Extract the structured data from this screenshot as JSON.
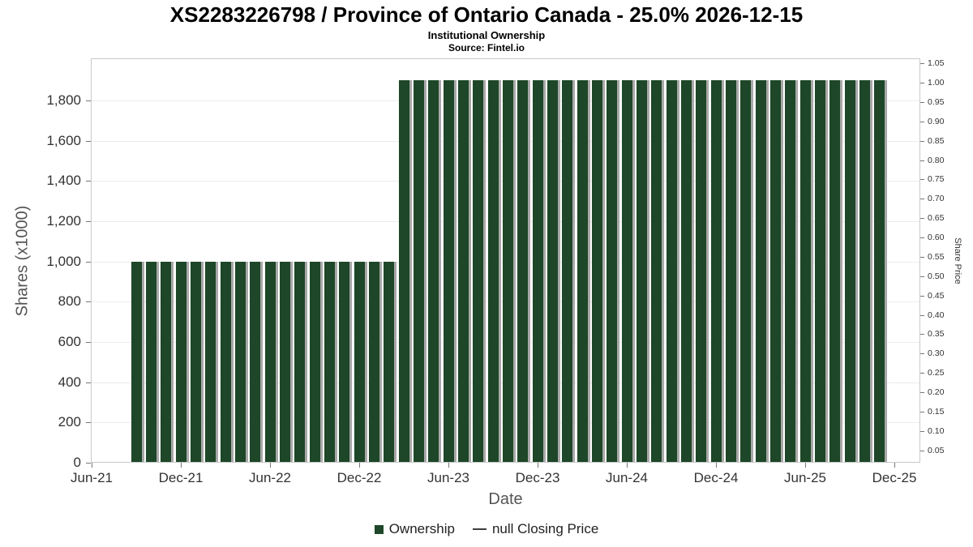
{
  "chart_data": {
    "type": "bar",
    "title": "XS2283226798 / Province of Ontario Canada - 25.0% 2026-12-15",
    "subtitle": "Institutional Ownership",
    "source": "Source: Fintel.io",
    "xlabel": "Date",
    "ylabel": "Shares (x1000)",
    "ylabel_right": "Share Price",
    "bar_color": "#1d4728",
    "bar_shadow_color": "#a8a8a8",
    "grid": true,
    "legend_position": "bottom",
    "x_tick_labels": [
      "Jun-21",
      "Dec-21",
      "Jun-22",
      "Dec-22",
      "Jun-23",
      "Dec-23",
      "Jun-24",
      "Dec-24",
      "Jun-25",
      "Dec-25"
    ],
    "left_axis": {
      "max": 2009,
      "ticks": [
        {
          "label": "0",
          "value": 0
        },
        {
          "label": "200",
          "value": 200
        },
        {
          "label": "400",
          "value": 400
        },
        {
          "label": "600",
          "value": 600
        },
        {
          "label": "800",
          "value": 800
        },
        {
          "label": "1,000",
          "value": 1000
        },
        {
          "label": "1,200",
          "value": 1200
        },
        {
          "label": "1,400",
          "value": 1400
        },
        {
          "label": "1,600",
          "value": 1600
        },
        {
          "label": "1,800",
          "value": 1800
        }
      ]
    },
    "right_axis": {
      "min": 0.018,
      "max": 1.063,
      "ticks": [
        {
          "label": "1.05",
          "value": 1.05
        },
        {
          "label": "1.00",
          "value": 1.0
        },
        {
          "label": "0.95",
          "value": 0.95
        },
        {
          "label": "0.90",
          "value": 0.9
        },
        {
          "label": "0.85",
          "value": 0.85
        },
        {
          "label": "0.80",
          "value": 0.8
        },
        {
          "label": "0.75",
          "value": 0.75
        },
        {
          "label": "0.70",
          "value": 0.7
        },
        {
          "label": "0.65",
          "value": 0.65
        },
        {
          "label": "0.60",
          "value": 0.6
        },
        {
          "label": "0.55",
          "value": 0.55
        },
        {
          "label": "0.50",
          "value": 0.5
        },
        {
          "label": "0.45",
          "value": 0.45
        },
        {
          "label": "0.40",
          "value": 0.4
        },
        {
          "label": "0.35",
          "value": 0.35
        },
        {
          "label": "0.30",
          "value": 0.3
        },
        {
          "label": "0.25",
          "value": 0.25
        },
        {
          "label": "0.20",
          "value": 0.2
        },
        {
          "label": "0.15",
          "value": 0.15
        },
        {
          "label": "0.10",
          "value": 0.1
        },
        {
          "label": "0.05",
          "value": 0.05
        }
      ]
    },
    "legend": [
      {
        "label": "Ownership",
        "marker": "square",
        "color": "#1d4728"
      },
      {
        "label": "null Closing Price",
        "marker": "line",
        "color": "#3f3f3f"
      }
    ],
    "series": [
      {
        "name": "Ownership",
        "unit": "shares x1000",
        "points": [
          {
            "month": "Sep-21",
            "value": 1000
          },
          {
            "month": "Oct-21",
            "value": 1000
          },
          {
            "month": "Nov-21",
            "value": 1000
          },
          {
            "month": "Dec-21",
            "value": 1000
          },
          {
            "month": "Jan-22",
            "value": 1000
          },
          {
            "month": "Feb-22",
            "value": 1000
          },
          {
            "month": "Mar-22",
            "value": 1000
          },
          {
            "month": "Apr-22",
            "value": 1000
          },
          {
            "month": "May-22",
            "value": 1000
          },
          {
            "month": "Jun-22",
            "value": 1000
          },
          {
            "month": "Jul-22",
            "value": 1000
          },
          {
            "month": "Aug-22",
            "value": 1000
          },
          {
            "month": "Sep-22",
            "value": 1000
          },
          {
            "month": "Oct-22",
            "value": 1000
          },
          {
            "month": "Nov-22",
            "value": 1000
          },
          {
            "month": "Dec-22",
            "value": 1000
          },
          {
            "month": "Jan-23",
            "value": 1000
          },
          {
            "month": "Feb-23",
            "value": 1000
          },
          {
            "month": "Mar-23",
            "value": 1900
          },
          {
            "month": "Apr-23",
            "value": 1900
          },
          {
            "month": "May-23",
            "value": 1900
          },
          {
            "month": "Jun-23",
            "value": 1900
          },
          {
            "month": "Jul-23",
            "value": 1900
          },
          {
            "month": "Aug-23",
            "value": 1900
          },
          {
            "month": "Sep-23",
            "value": 1900
          },
          {
            "month": "Oct-23",
            "value": 1900
          },
          {
            "month": "Nov-23",
            "value": 1900
          },
          {
            "month": "Dec-23",
            "value": 1900
          },
          {
            "month": "Jan-24",
            "value": 1900
          },
          {
            "month": "Feb-24",
            "value": 1900
          },
          {
            "month": "Mar-24",
            "value": 1900
          },
          {
            "month": "Apr-24",
            "value": 1900
          },
          {
            "month": "May-24",
            "value": 1900
          },
          {
            "month": "Jun-24",
            "value": 1900
          },
          {
            "month": "Jul-24",
            "value": 1900
          },
          {
            "month": "Aug-24",
            "value": 1900
          },
          {
            "month": "Sep-24",
            "value": 1900
          },
          {
            "month": "Oct-24",
            "value": 1900
          },
          {
            "month": "Nov-24",
            "value": 1900
          },
          {
            "month": "Dec-24",
            "value": 1900
          },
          {
            "month": "Jan-25",
            "value": 1900
          },
          {
            "month": "Feb-25",
            "value": 1900
          },
          {
            "month": "Mar-25",
            "value": 1900
          },
          {
            "month": "Apr-25",
            "value": 1900
          },
          {
            "month": "May-25",
            "value": 1900
          },
          {
            "month": "Jun-25",
            "value": 1900
          },
          {
            "month": "Jul-25",
            "value": 1900
          },
          {
            "month": "Aug-25",
            "value": 1900
          },
          {
            "month": "Sep-25",
            "value": 1900
          },
          {
            "month": "Oct-25",
            "value": 1900
          },
          {
            "month": "Nov-25",
            "value": 1900
          }
        ]
      }
    ]
  }
}
